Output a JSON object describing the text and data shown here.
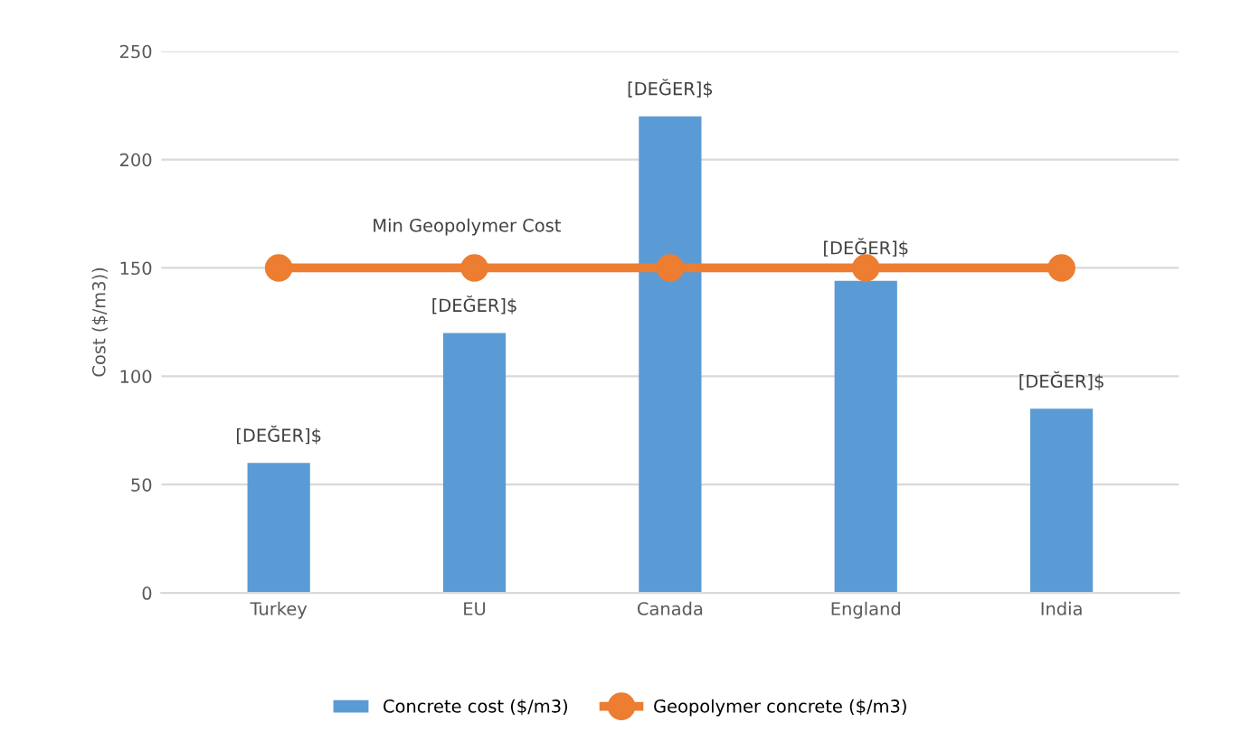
{
  "chart_data": {
    "type": "bar",
    "ylabel": "Cost ($/m3))",
    "categories": [
      "Turkey",
      "EU",
      "Canada",
      "England",
      "India"
    ],
    "series": [
      {
        "name": "Concrete cost ($/m3)",
        "color": "#5b9bd5",
        "values": [
          60,
          120,
          220,
          144,
          85
        ],
        "value_labels": [
          "[DEĞER]$",
          "[DEĞER]$",
          "[DEĞER]$",
          "[DEĞER]$",
          "[DEĞER]$"
        ]
      },
      {
        "name": "Geopolymer concrete ($/m3)",
        "type": "line",
        "color": "#ed7d31",
        "values": [
          150,
          150,
          150,
          150,
          150
        ],
        "marker": "circle"
      }
    ],
    "annotations": [
      "Min Geopolymer Cost"
    ],
    "ylim": [
      0,
      250
    ],
    "yticks": [
      0,
      50,
      100,
      150,
      200,
      250
    ],
    "grid": "y",
    "legend": "bottom"
  }
}
